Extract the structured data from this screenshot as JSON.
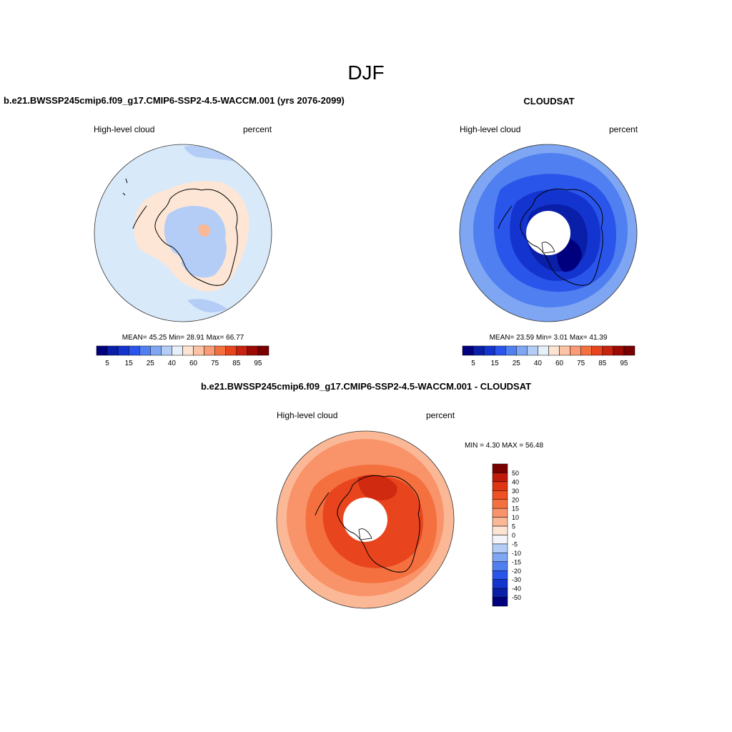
{
  "figure": {
    "title": "DJF"
  },
  "panels": [
    {
      "title": "b.e21.BWSSP245cmip6.f09_g17.CMIP6-SSP2-4.5-WACCM.001 (yrs 2076-2099)",
      "variable": "High-level cloud",
      "units": "percent",
      "stats_text": "MEAN=  45.25  Min=  28.91  Max=  66.77",
      "mean": 45.25,
      "min": 28.91,
      "max": 66.77
    },
    {
      "title": "CLOUDSAT",
      "variable": "High-level cloud",
      "units": "percent",
      "stats_text": "MEAN=  23.59  Min=   3.01  Max=  41.39",
      "mean": 23.59,
      "min": 3.01,
      "max": 41.39
    },
    {
      "title": "b.e21.BWSSP245cmip6.f09_g17.CMIP6-SSP2-4.5-WACCM.001 - CLOUDSAT",
      "variable": "High-level cloud",
      "units": "percent",
      "stats_text": "MIN =   4.30 MAX =  56.48",
      "min": 4.3,
      "max": 56.48
    }
  ],
  "colorbars": {
    "horizontal": {
      "labels": [
        "5",
        "15",
        "25",
        "40",
        "60",
        "75",
        "85",
        "95"
      ],
      "colors": [
        "#00007f",
        "#0a1fa8",
        "#1434d0",
        "#2a55ea",
        "#4f7ff0",
        "#7ea6f2",
        "#b4cdf6",
        "#e6f0fa",
        "#fde3d2",
        "#fcc3a5",
        "#fb9a74",
        "#f5703f",
        "#e8451f",
        "#c7230f",
        "#9b0a03",
        "#7a0000"
      ]
    },
    "vertical": {
      "labels": [
        "50",
        "40",
        "30",
        "20",
        "15",
        "10",
        "5",
        "0",
        "-5",
        "-10",
        "-15",
        "-20",
        "-30",
        "-40",
        "-50"
      ],
      "colors": [
        "#7a0000",
        "#c01a0a",
        "#e03512",
        "#f05024",
        "#f5703f",
        "#f99369",
        "#fbb896",
        "#fde3d2",
        "#f3f5fb",
        "#b4cdf6",
        "#7ea6f2",
        "#4f7ff0",
        "#2a55ea",
        "#1434d0",
        "#0a1fa8",
        "#00007f"
      ]
    }
  },
  "map_colors": {
    "model_background": "#d8e9fa",
    "model_light_blue": "#b4cdf6",
    "model_peach": "#fde6d6",
    "model_salmon": "#fbb896",
    "obs_blue_light": "#7ea6f2",
    "obs_blue": "#4f7ff0",
    "obs_blue_mid": "#2a55ea",
    "obs_blue_dark": "#1434d0",
    "obs_blue_deep": "#0a1fa8",
    "diff_salmon": "#fbb896",
    "diff_orange": "#f99369",
    "diff_red": "#f5703f",
    "diff_deep": "#e8451f",
    "diff_darker": "#d02a10"
  }
}
